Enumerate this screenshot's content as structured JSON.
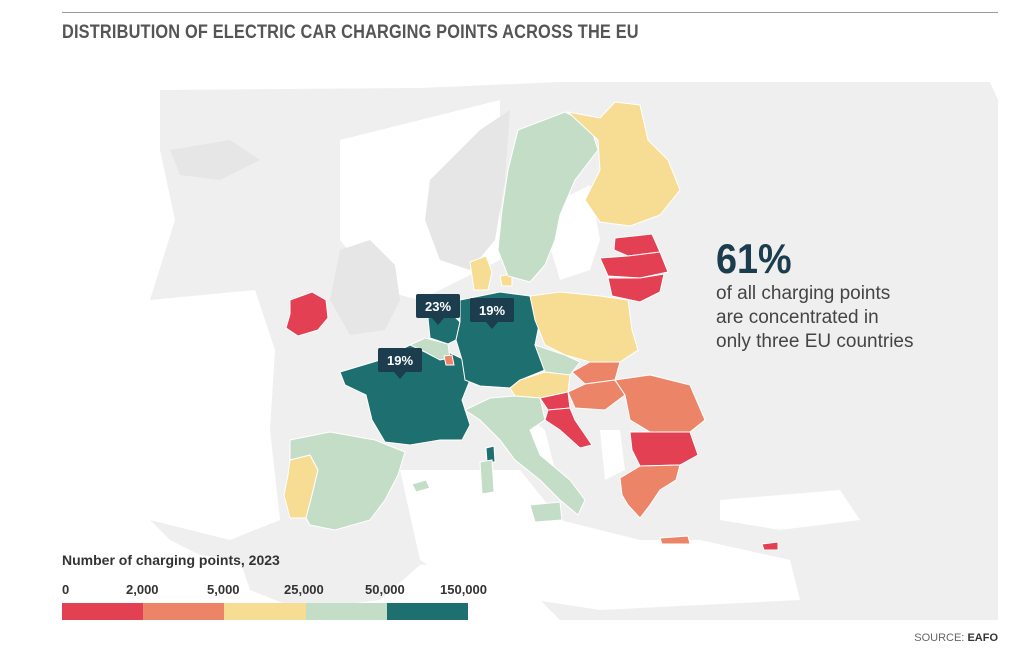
{
  "title": "DISTRIBUTION OF ELECTRIC CAR CHARGING POINTS ACROSS THE EU",
  "colors": {
    "band_0_2000": "#e34153",
    "band_2000_5000": "#ec8468",
    "band_5000_25000": "#f7dc93",
    "band_25000_50000": "#c3ddc6",
    "band_50000_150000": "#1e6f6f",
    "background_land": "#efefef"
  },
  "callouts": {
    "netherlands": "23%",
    "germany": "19%",
    "france": "19%"
  },
  "stat": {
    "big": "61%",
    "line1": "of all charging points",
    "line2": "are concentrated in",
    "line3": "only three EU countries"
  },
  "legend": {
    "title": "Number of charging points, 2023",
    "ticks": [
      "0",
      "2,000",
      "5,000",
      "25,000",
      "50,000",
      "150,000"
    ]
  },
  "source": {
    "label": "SOURCE: ",
    "value": "EAFO"
  }
}
